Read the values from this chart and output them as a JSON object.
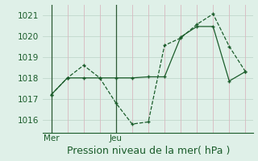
{
  "title": "Pression niveau de la mer( hPa )",
  "bg_color": "#dff0e8",
  "grid_color_y": "#c0d8cc",
  "grid_color_x": "#d8b8c0",
  "line_color": "#1a5c2a",
  "x_tick_labels": [
    "Mer",
    "Jeu"
  ],
  "x_tick_positions": [
    0,
    4
  ],
  "xlim": [
    -0.5,
    12.5
  ],
  "ylim": [
    1015.4,
    1021.5
  ],
  "yticks": [
    1016,
    1017,
    1018,
    1019,
    1020,
    1021
  ],
  "ver_line_x": [
    0,
    4
  ],
  "series1_x": [
    0,
    1,
    2,
    3,
    4,
    5,
    6,
    7,
    8,
    9,
    10,
    11,
    12
  ],
  "series1_y": [
    1017.2,
    1018.0,
    1018.6,
    1018.0,
    1016.8,
    1015.8,
    1015.9,
    1019.55,
    1019.9,
    1020.55,
    1021.05,
    1019.5,
    1018.3
  ],
  "series2_x": [
    0,
    1,
    2,
    3,
    4,
    5,
    6,
    7,
    8,
    9,
    10,
    11,
    12
  ],
  "series2_y": [
    1017.2,
    1018.0,
    1018.0,
    1018.0,
    1018.0,
    1018.0,
    1018.05,
    1018.05,
    1019.95,
    1020.45,
    1020.45,
    1017.85,
    1018.3
  ],
  "xlabel_fontsize": 9,
  "tick_fontsize": 7.5
}
